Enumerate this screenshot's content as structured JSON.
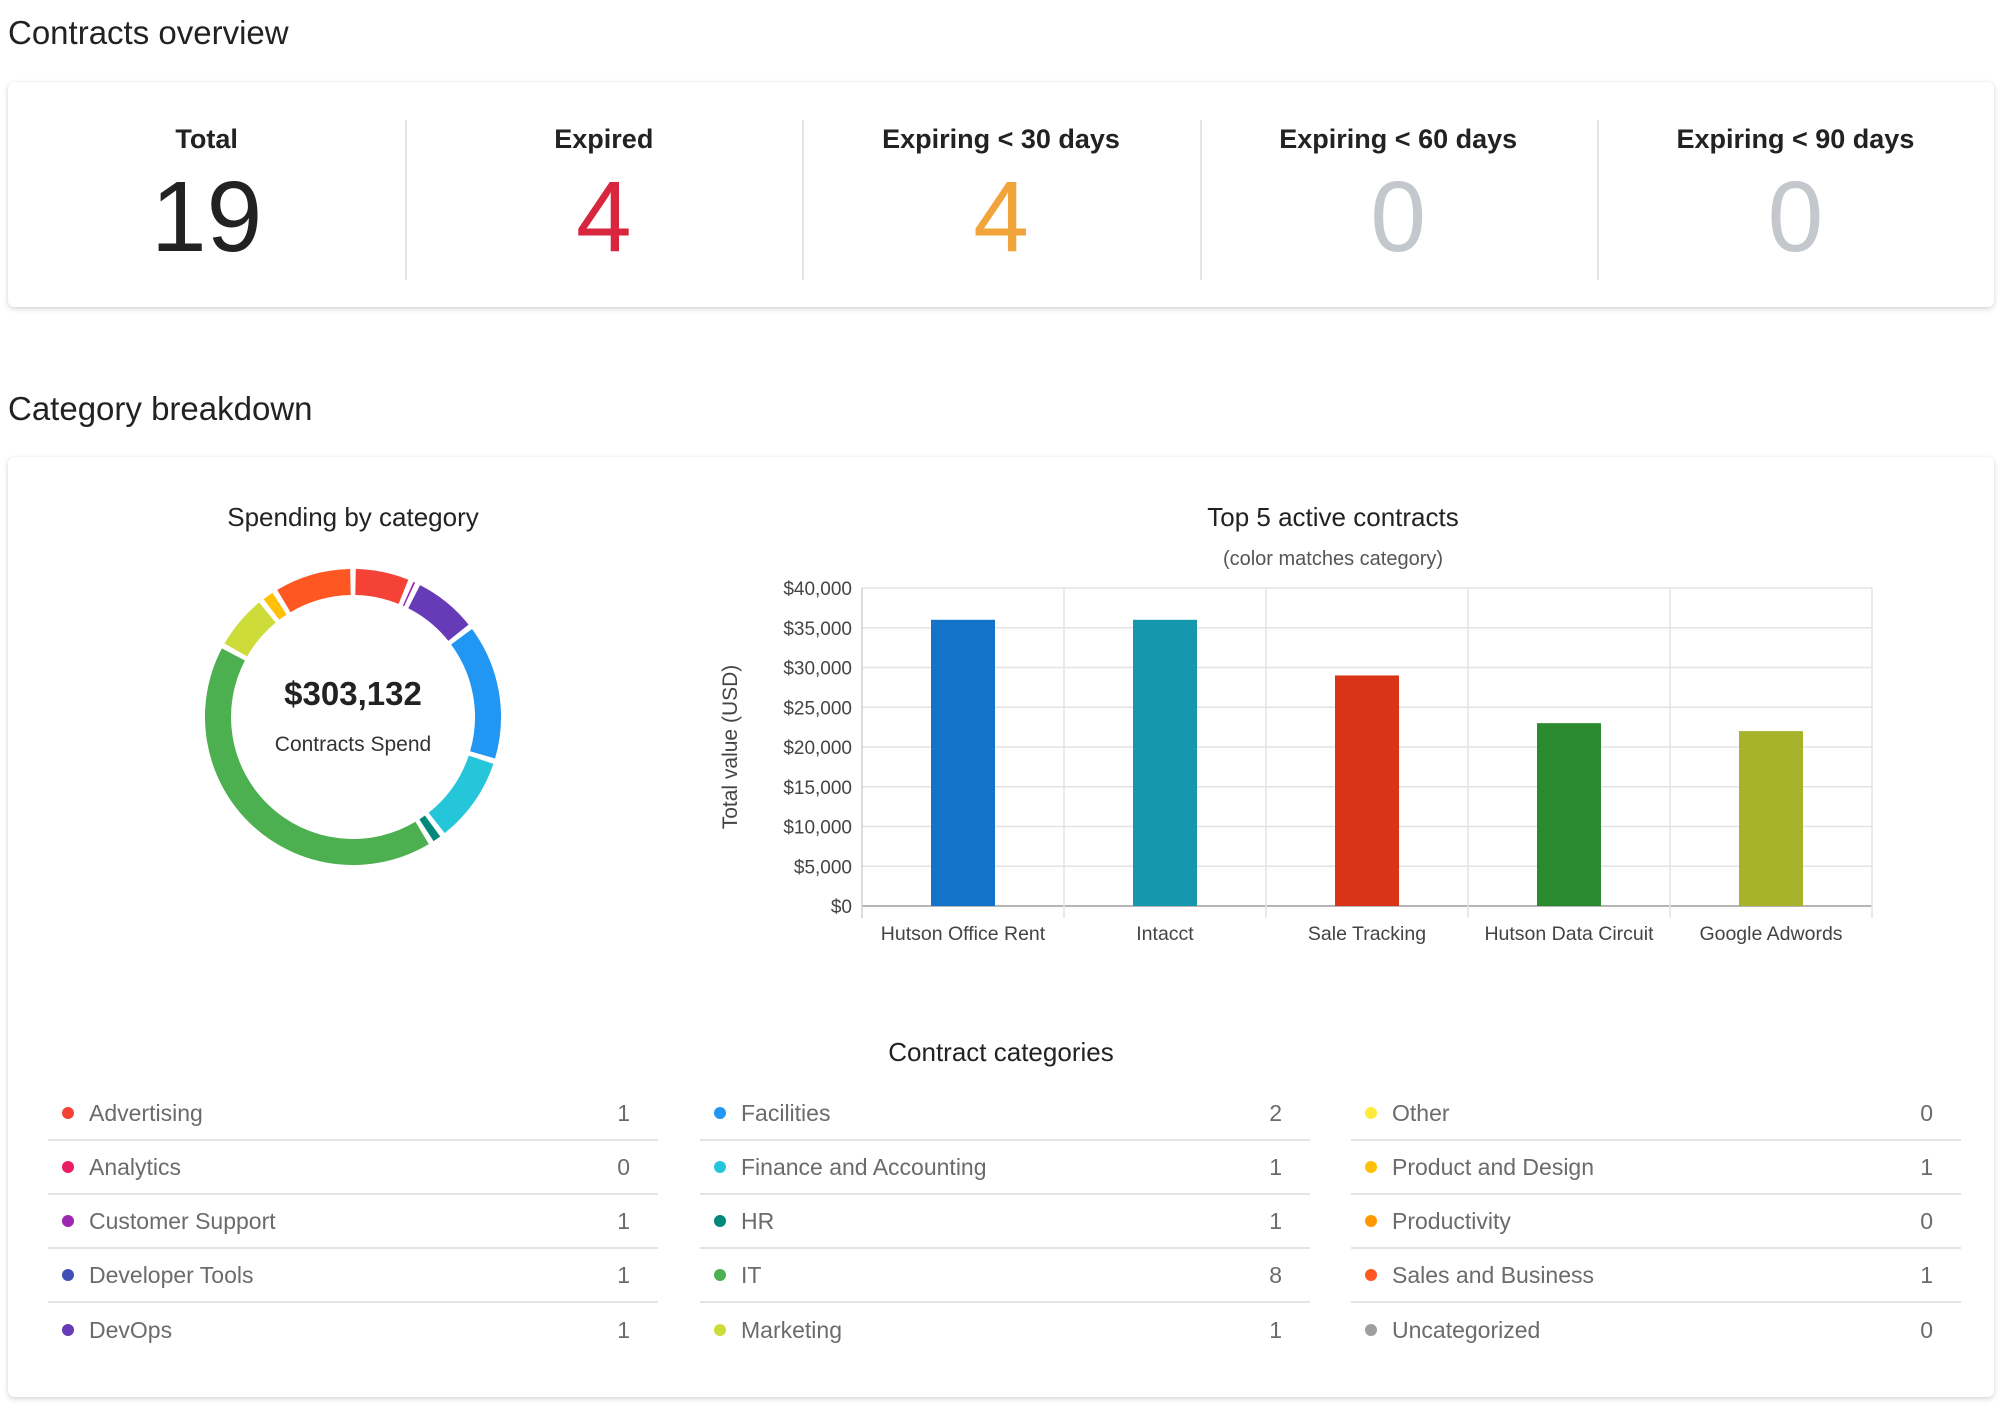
{
  "overview": {
    "title": "Contracts overview",
    "stats": [
      {
        "label": "Total",
        "value": "19",
        "color": "#222222"
      },
      {
        "label": "Expired",
        "value": "4",
        "color": "#d7263d"
      },
      {
        "label": "Expiring < 30 days",
        "value": "4",
        "color": "#f0a43a"
      },
      {
        "label": "Expiring < 60 days",
        "value": "0",
        "color": "#c4c8cc"
      },
      {
        "label": "Expiring < 90 days",
        "value": "0",
        "color": "#c4c8cc"
      }
    ]
  },
  "breakdown": {
    "title": "Category breakdown",
    "donut_title": "Spending by category",
    "donut_value": "$303,132",
    "donut_label": "Contracts Spend",
    "bar_title": "Top 5 active contracts",
    "bar_subtitle": "(color matches category)",
    "categories_title": "Contract categories"
  },
  "chart_data": [
    {
      "type": "pie",
      "title": "Spending by category",
      "total_label": "$303,132",
      "slices": [
        {
          "value": 6.5,
          "color": "#f44336"
        },
        {
          "value": 0.8,
          "color": "#9c27b0"
        },
        {
          "value": 7.5,
          "color": "#673ab7"
        },
        {
          "value": 15.5,
          "color": "#2196f3"
        },
        {
          "value": 10.0,
          "color": "#26c6da"
        },
        {
          "value": 1.5,
          "color": "#00897b"
        },
        {
          "value": 42.5,
          "color": "#4caf50"
        },
        {
          "value": 6.5,
          "color": "#cddc39"
        },
        {
          "value": 1.8,
          "color": "#ffc107"
        },
        {
          "value": 9.0,
          "color": "#ff5722"
        }
      ]
    },
    {
      "type": "bar",
      "title": "Top 5 active contracts",
      "subtitle": "(color matches category)",
      "ylabel": "Total value (USD)",
      "ylim": [
        0,
        40000
      ],
      "yticks": [
        "$0",
        "$5,000",
        "$10,000",
        "$15,000",
        "$20,000",
        "$25,000",
        "$30,000",
        "$35,000",
        "$40,000"
      ],
      "categories": [
        "Hutson Office Rent",
        "Intacct",
        "Sale Tracking",
        "Hutson Data Circuit",
        "Google Adwords"
      ],
      "values": [
        36000,
        36000,
        29000,
        23000,
        22000
      ],
      "colors": [
        "#1273c9",
        "#1597ad",
        "#d93418",
        "#2b8a2f",
        "#a7b32a"
      ],
      "grid": true
    }
  ],
  "category_columns": [
    [
      {
        "name": "Advertising",
        "count": "1",
        "color": "#f44336"
      },
      {
        "name": "Analytics",
        "count": "0",
        "color": "#e91e63"
      },
      {
        "name": "Customer Support",
        "count": "1",
        "color": "#9c27b0"
      },
      {
        "name": "Developer Tools",
        "count": "1",
        "color": "#3f51b5"
      },
      {
        "name": "DevOps",
        "count": "1",
        "color": "#673ab7"
      }
    ],
    [
      {
        "name": "Facilities",
        "count": "2",
        "color": "#2196f3"
      },
      {
        "name": "Finance and Accounting",
        "count": "1",
        "color": "#26c6da"
      },
      {
        "name": "HR",
        "count": "1",
        "color": "#00897b"
      },
      {
        "name": "IT",
        "count": "8",
        "color": "#4caf50"
      },
      {
        "name": "Marketing",
        "count": "1",
        "color": "#cddc39"
      }
    ],
    [
      {
        "name": "Other",
        "count": "0",
        "color": "#ffeb3b"
      },
      {
        "name": "Product and Design",
        "count": "1",
        "color": "#ffc107"
      },
      {
        "name": "Productivity",
        "count": "0",
        "color": "#ff9800"
      },
      {
        "name": "Sales and Business",
        "count": "1",
        "color": "#ff5722"
      },
      {
        "name": "Uncategorized",
        "count": "0",
        "color": "#9e9e9e"
      }
    ]
  ]
}
